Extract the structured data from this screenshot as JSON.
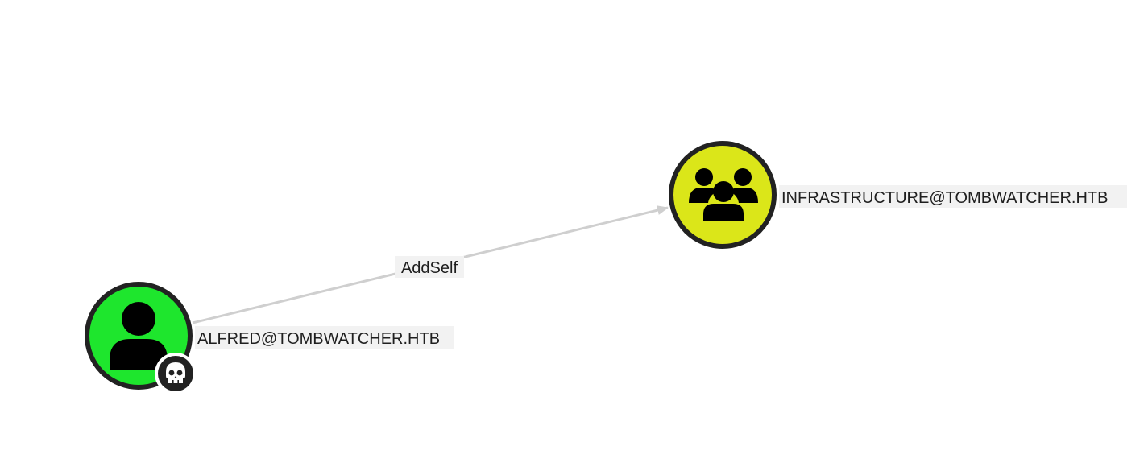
{
  "graph": {
    "nodes": [
      {
        "id": "alfred",
        "label": "ALFRED@TOMBWATCHER.HTB",
        "kind": "user",
        "icon": "user-icon",
        "fill": "#1ee62d",
        "border": "#222222",
        "badge": {
          "icon": "skull-icon",
          "fill": "#222222"
        }
      },
      {
        "id": "infrastructure",
        "label": "INFRASTRUCTURE@TOMBWATCHER.HTB",
        "kind": "group",
        "icon": "group-icon",
        "fill": "#dbe619",
        "border": "#222222"
      }
    ],
    "edges": [
      {
        "from": "alfred",
        "to": "infrastructure",
        "label": "AddSelf",
        "color": "#cfcfcf"
      }
    ],
    "label_background": "#f2f2f2"
  }
}
